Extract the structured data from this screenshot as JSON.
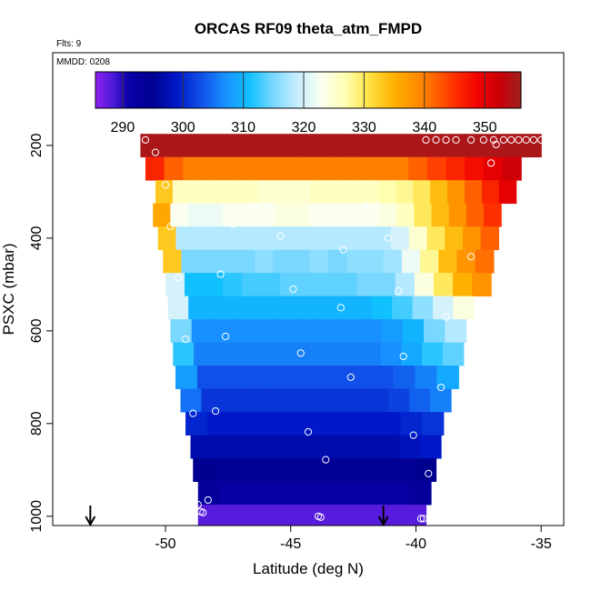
{
  "chart_data": {
    "type": "heatmap",
    "title": "ORCAS RF09 theta_atm_FMPD",
    "subtitle_left": "Flts: 9",
    "inset_label": "MMDD: 0208",
    "xlabel": "Latitude (deg N)",
    "ylabel": "PSXC (mbar)",
    "xlim": [
      -54.5,
      -34.1
    ],
    "ylim": [
      1020,
      0
    ],
    "x_ticks": [
      -50,
      -45,
      -40,
      -35
    ],
    "x_tick_labels": [
      "-50",
      "-45",
      "-40",
      "-35"
    ],
    "y_ticks": [
      200,
      400,
      600,
      800,
      1000
    ],
    "y_tick_labels": [
      "200",
      "400",
      "600",
      "800",
      "1000"
    ],
    "colorbar": {
      "range": [
        285.5,
        356
      ],
      "ticks": [
        290,
        300,
        310,
        320,
        330,
        340,
        350
      ],
      "tick_labels": [
        "290",
        "300",
        "310",
        "320",
        "330",
        "340",
        "350"
      ],
      "stops": [
        {
          "v": 285.5,
          "c": "#9020f0"
        },
        {
          "v": 288.5,
          "c": "#4a1ad8"
        },
        {
          "v": 291.0,
          "c": "#0a00a8"
        },
        {
          "v": 295.0,
          "c": "#000090"
        },
        {
          "v": 299.0,
          "c": "#0018c8"
        },
        {
          "v": 303.0,
          "c": "#1050e8"
        },
        {
          "v": 307.0,
          "c": "#1890ff"
        },
        {
          "v": 311.0,
          "c": "#10c0ff"
        },
        {
          "v": 315.0,
          "c": "#7ad8ff"
        },
        {
          "v": 319.0,
          "c": "#c8eeff"
        },
        {
          "v": 323.0,
          "c": "#fafff0"
        },
        {
          "v": 327.0,
          "c": "#ffffb0"
        },
        {
          "v": 331.0,
          "c": "#ffe040"
        },
        {
          "v": 335.0,
          "c": "#ffb000"
        },
        {
          "v": 340.0,
          "c": "#ff8000"
        },
        {
          "v": 345.0,
          "c": "#ff3000"
        },
        {
          "v": 349.0,
          "c": "#f00000"
        },
        {
          "v": 352.5,
          "c": "#c80008"
        },
        {
          "v": 356.0,
          "c": "#a02020"
        }
      ]
    },
    "rows": [
      {
        "p": 200,
        "xmin": -51.0,
        "xmax": -35.0,
        "vals": [
          355,
          355,
          355,
          355,
          355,
          355,
          355,
          355,
          355,
          355,
          355,
          355,
          355,
          355,
          355,
          355
        ]
      },
      {
        "p": 250,
        "xmin": -50.8,
        "xmax": -35.8,
        "vals": [
          346,
          342,
          340,
          340,
          340,
          340,
          340,
          340,
          340,
          340,
          340,
          340,
          340,
          340,
          342,
          344,
          346,
          348,
          350,
          352
        ]
      },
      {
        "p": 300,
        "xmin": -50.4,
        "xmax": -36.0,
        "vals": [
          333,
          326,
          326,
          326,
          326,
          326,
          325,
          325,
          325,
          326,
          326,
          326,
          326,
          327,
          328,
          330,
          334,
          338,
          342,
          346,
          350
        ]
      },
      {
        "p": 350,
        "xmin": -50.5,
        "xmax": -36.6,
        "vals": [
          336,
          323,
          322,
          322,
          323,
          323,
          323,
          324,
          324,
          323,
          323,
          323,
          323,
          324,
          326,
          330,
          334,
          338,
          342,
          345
        ]
      },
      {
        "p": 400,
        "xmin": -50.3,
        "xmax": -36.7,
        "vals": [
          333,
          318,
          318,
          318,
          318,
          318,
          318,
          318,
          318,
          318,
          318,
          318,
          318,
          320,
          325,
          330,
          334,
          338,
          342
        ]
      },
      {
        "p": 450,
        "xmin": -50.1,
        "xmax": -36.9,
        "vals": [
          333,
          315,
          315,
          315,
          315,
          316,
          315,
          315,
          316,
          315,
          316,
          316,
          317,
          322,
          328,
          334,
          338,
          341
        ]
      },
      {
        "p": 500,
        "xmin": -50.0,
        "xmax": -37.0,
        "vals": [
          320,
          311,
          311,
          312,
          313,
          313,
          314,
          314,
          314,
          314,
          315,
          315,
          318,
          324,
          330,
          335,
          338
        ]
      },
      {
        "p": 550,
        "xmin": -49.9,
        "xmax": -37.7,
        "vals": [
          320,
          310,
          310,
          310,
          310,
          310,
          310,
          310,
          310,
          310,
          311,
          313,
          316,
          320,
          324
        ]
      },
      {
        "p": 600,
        "xmin": -49.8,
        "xmax": -38.0,
        "vals": [
          315,
          307,
          307,
          307,
          307,
          307,
          307,
          307,
          307,
          307,
          308,
          310,
          315,
          318
        ]
      },
      {
        "p": 650,
        "xmin": -49.7,
        "xmax": -38.1,
        "vals": [
          312,
          306,
          306,
          306,
          306,
          306,
          306,
          306,
          306,
          306,
          307,
          309,
          312,
          314
        ]
      },
      {
        "p": 700,
        "xmin": -49.6,
        "xmax": -38.3,
        "vals": [
          308,
          303,
          303,
          303,
          303,
          303,
          303,
          303,
          303,
          303,
          304,
          306,
          309
        ]
      },
      {
        "p": 750,
        "xmin": -49.4,
        "xmax": -38.6,
        "vals": [
          305,
          301,
          301,
          301,
          301,
          301,
          301,
          301,
          301,
          301,
          302,
          304,
          306
        ]
      },
      {
        "p": 800,
        "xmin": -49.2,
        "xmax": -38.9,
        "vals": [
          300,
          299,
          299,
          299,
          299,
          299,
          299,
          299,
          299,
          299,
          300,
          301
        ]
      },
      {
        "p": 850,
        "xmin": -49.0,
        "xmax": -39.0,
        "vals": [
          297,
          297,
          297,
          297,
          297,
          297,
          297,
          297,
          297,
          297,
          298,
          299
        ]
      },
      {
        "p": 900,
        "xmin": -48.9,
        "xmax": -39.2,
        "vals": [
          295,
          294,
          294,
          294,
          294,
          294,
          294,
          294,
          294,
          294,
          295
        ]
      },
      {
        "p": 950,
        "xmin": -48.7,
        "xmax": -39.4,
        "vals": [
          293,
          292,
          292,
          292,
          292,
          292,
          292,
          292,
          292,
          292,
          293
        ]
      },
      {
        "p": 1000,
        "xmin": -48.7,
        "xmax": -39.6,
        "vals": [
          288,
          288,
          288,
          288,
          288,
          288,
          288,
          288,
          288,
          288
        ]
      }
    ],
    "flight_points": [
      {
        "x": -50.8,
        "p": 188
      },
      {
        "x": -50.4,
        "p": 215
      },
      {
        "x": -37.0,
        "p": 238
      },
      {
        "x": -39.6,
        "p": 188
      },
      {
        "x": -39.2,
        "p": 188
      },
      {
        "x": -38.8,
        "p": 188
      },
      {
        "x": -38.4,
        "p": 188
      },
      {
        "x": -37.8,
        "p": 188
      },
      {
        "x": -37.3,
        "p": 188
      },
      {
        "x": -36.9,
        "p": 188
      },
      {
        "x": -36.8,
        "p": 198
      },
      {
        "x": -36.5,
        "p": 188
      },
      {
        "x": -36.2,
        "p": 188
      },
      {
        "x": -35.9,
        "p": 188
      },
      {
        "x": -35.6,
        "p": 188
      },
      {
        "x": -35.3,
        "p": 188
      },
      {
        "x": -35.0,
        "p": 188
      },
      {
        "x": -50.0,
        "p": 285
      },
      {
        "x": -46.5,
        "p": 330
      },
      {
        "x": -45.9,
        "p": 330
      },
      {
        "x": -42.0,
        "p": 330
      },
      {
        "x": -41.5,
        "p": 330
      },
      {
        "x": -47.3,
        "p": 370
      },
      {
        "x": -49.8,
        "p": 375
      },
      {
        "x": -45.4,
        "p": 395
      },
      {
        "x": -41.1,
        "p": 400
      },
      {
        "x": -42.9,
        "p": 425
      },
      {
        "x": -37.8,
        "p": 440
      },
      {
        "x": -49.5,
        "p": 485
      },
      {
        "x": -47.8,
        "p": 478
      },
      {
        "x": -44.9,
        "p": 510
      },
      {
        "x": -40.7,
        "p": 514
      },
      {
        "x": -43.0,
        "p": 550
      },
      {
        "x": -38.8,
        "p": 570
      },
      {
        "x": -49.2,
        "p": 618
      },
      {
        "x": -47.6,
        "p": 612
      },
      {
        "x": -44.6,
        "p": 648
      },
      {
        "x": -40.5,
        "p": 655
      },
      {
        "x": -42.6,
        "p": 700
      },
      {
        "x": -39.0,
        "p": 722
      },
      {
        "x": -48.9,
        "p": 778
      },
      {
        "x": -48.0,
        "p": 773
      },
      {
        "x": -44.3,
        "p": 818
      },
      {
        "x": -40.1,
        "p": 825
      },
      {
        "x": -43.6,
        "p": 878
      },
      {
        "x": -39.5,
        "p": 908
      },
      {
        "x": -48.3,
        "p": 965
      },
      {
        "x": -48.7,
        "p": 975
      },
      {
        "x": -48.6,
        "p": 990
      },
      {
        "x": -48.5,
        "p": 992
      },
      {
        "x": -43.9,
        "p": 1000
      },
      {
        "x": -43.8,
        "p": 1002
      },
      {
        "x": -39.8,
        "p": 1005
      },
      {
        "x": -39.7,
        "p": 1005
      }
    ],
    "markers": [
      {
        "x": -53.0,
        "symbol": "down-arrow"
      },
      {
        "x": -41.3,
        "symbol": "down-arrow"
      }
    ]
  }
}
